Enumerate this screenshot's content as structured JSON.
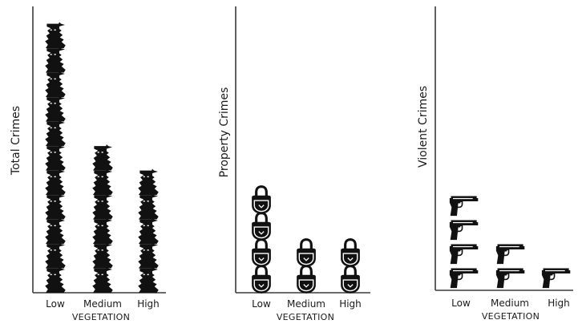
{
  "chart_data": [
    {
      "type": "bar",
      "pictogram": "masked-burglar-icon",
      "categories": [
        "Low",
        "Medium",
        "High"
      ],
      "values": [
        11,
        6.5,
        5.5
      ],
      "xlabel": "VEGETATION",
      "ylabel": "Total Crimes",
      "grid": false
    },
    {
      "type": "bar",
      "pictogram": "padlock-icon",
      "categories": [
        "Low",
        "Medium",
        "High"
      ],
      "values": [
        4.3,
        2.8,
        2.4
      ],
      "xlabel": "VEGETATION",
      "ylabel": "Property Crimes",
      "grid": false
    },
    {
      "type": "bar",
      "pictogram": "pistol-icon",
      "categories": [
        "Low",
        "Medium",
        "High"
      ],
      "values": [
        4,
        2.2,
        1.8
      ],
      "xlabel": "VEGETATION",
      "ylabel": "Violent Crimes",
      "grid": false
    }
  ]
}
